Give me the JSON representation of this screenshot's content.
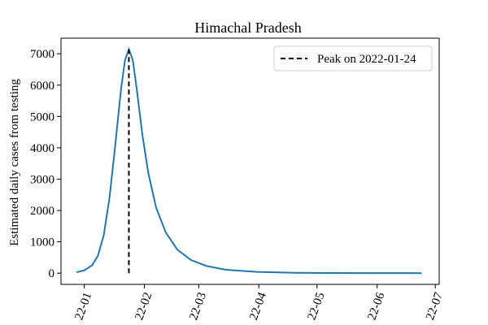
{
  "chart_data": {
    "type": "line",
    "title": "Himachal Pradesh",
    "ylabel": "Estimated daily cases from testing",
    "x": [
      "2021-12-28",
      "2022-01-01",
      "2022-01-05",
      "2022-01-08",
      "2022-01-11",
      "2022-01-14",
      "2022-01-17",
      "2022-01-20",
      "2022-01-22",
      "2022-01-24",
      "2022-01-26",
      "2022-01-28",
      "2022-01-31",
      "2022-02-03",
      "2022-02-07",
      "2022-02-12",
      "2022-02-18",
      "2022-02-25",
      "2022-03-05",
      "2022-03-15",
      "2022-03-31",
      "2022-04-20",
      "2022-05-20",
      "2022-06-24"
    ],
    "values": [
      30,
      90,
      250,
      550,
      1200,
      2400,
      4100,
      5900,
      6800,
      7140,
      6800,
      5900,
      4400,
      3200,
      2100,
      1300,
      750,
      420,
      230,
      110,
      40,
      12,
      3,
      1
    ],
    "color": "#1f77b4",
    "annotations": [
      {
        "label": "Peak on 2022-01-24",
        "x": "2022-01-24",
        "y": [
          0,
          7140
        ],
        "color": "#000000"
      }
    ],
    "xlim": [
      "2021-12-20",
      "2022-07-03"
    ],
    "xticks": [
      {
        "value": "2022-01-01",
        "label": "22-01"
      },
      {
        "value": "2022-02-01",
        "label": "22-02"
      },
      {
        "value": "2022-03-01",
        "label": "22-03"
      },
      {
        "value": "2022-04-01",
        "label": "22-04"
      },
      {
        "value": "2022-05-01",
        "label": "22-05"
      },
      {
        "value": "2022-06-01",
        "label": "22-06"
      },
      {
        "value": "2022-07-01",
        "label": "22-07"
      }
    ],
    "ylim": [
      -357,
      7497
    ],
    "yticks": [
      0,
      1000,
      2000,
      3000,
      4000,
      5000,
      6000,
      7000
    ],
    "legend": "upper right"
  }
}
